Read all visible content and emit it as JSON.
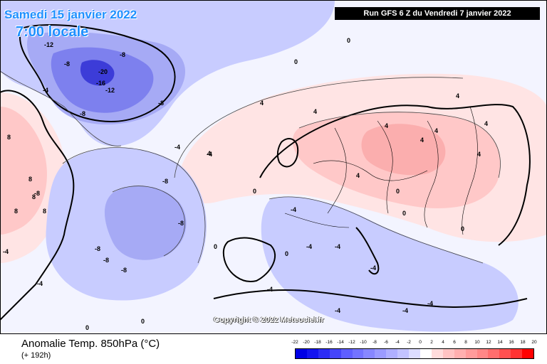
{
  "header": {
    "run_banner": "Run GFS 6 Z du Vendredi 7 janvier 2022",
    "valid_date": "Samedi 15 janvier 2022",
    "valid_time": "7:00 locale"
  },
  "footer": {
    "product": "Anomalie Temp. 850hPa (°C)",
    "lead": "(+ 192h)",
    "copyright": "Copyright © 2022 Meteociel.fr"
  },
  "legend": {
    "labels": [
      "-22",
      "-20",
      "-18",
      "-16",
      "-14",
      "-12",
      "-10",
      "-8",
      "-6",
      "-4",
      "-2",
      "0",
      "2",
      "4",
      "6",
      "8",
      "10",
      "12",
      "14",
      "16",
      "18",
      "20"
    ],
    "colors": [
      "#0000e6",
      "#1414f0",
      "#2d2df5",
      "#4646fa",
      "#5f5fff",
      "#7373ff",
      "#8787ff",
      "#9b9bff",
      "#afafff",
      "#c3c3ff",
      "#dcdcff",
      "#ffffff",
      "#ffdcdc",
      "#ffc3c3",
      "#ffafaf",
      "#ff9b9b",
      "#ff8787",
      "#ff6e6e",
      "#ff5050",
      "#ff3232",
      "#ff0000"
    ]
  },
  "map": {
    "colors": {
      "ocean_neutral": "#f3f4ff",
      "cold_light": "#c8ccff",
      "cold_mid": "#a6aaf5",
      "cold_deep": "#7d80ee",
      "cold_core": "#3c3cd8",
      "warm_light": "#ffe4e4",
      "warm_mid": "#ffc8c8",
      "warm_deep": "#fbaeae"
    },
    "contour_labels": [
      {
        "text": "-20"
      },
      {
        "text": "-16"
      },
      {
        "text": "-12"
      },
      {
        "text": "-12"
      },
      {
        "text": "-8"
      },
      {
        "text": "-8"
      },
      {
        "text": "-8"
      },
      {
        "text": "-8"
      },
      {
        "text": "-8"
      },
      {
        "text": "-8"
      },
      {
        "text": "-8"
      },
      {
        "text": "-8"
      },
      {
        "text": "-8"
      },
      {
        "text": "-8"
      },
      {
        "text": "-4"
      },
      {
        "text": "-4"
      },
      {
        "text": "-4"
      },
      {
        "text": "-4"
      },
      {
        "text": "-4"
      },
      {
        "text": "-4"
      },
      {
        "text": "-4"
      },
      {
        "text": "-4"
      },
      {
        "text": "-4"
      },
      {
        "text": "-4"
      },
      {
        "text": "-4"
      },
      {
        "text": "-4"
      },
      {
        "text": "-4"
      },
      {
        "text": "0"
      },
      {
        "text": "0"
      },
      {
        "text": "0"
      },
      {
        "text": "0"
      },
      {
        "text": "0"
      },
      {
        "text": "0"
      },
      {
        "text": "0"
      },
      {
        "text": "0"
      },
      {
        "text": "0"
      },
      {
        "text": "0"
      },
      {
        "text": "4"
      },
      {
        "text": "4"
      },
      {
        "text": "4"
      },
      {
        "text": "4"
      },
      {
        "text": "4"
      },
      {
        "text": "4"
      },
      {
        "text": "4"
      },
      {
        "text": "4"
      },
      {
        "text": "4"
      },
      {
        "text": "4"
      },
      {
        "text": "8"
      },
      {
        "text": "8"
      },
      {
        "text": "8"
      },
      {
        "text": "8"
      },
      {
        "text": "8"
      }
    ]
  }
}
